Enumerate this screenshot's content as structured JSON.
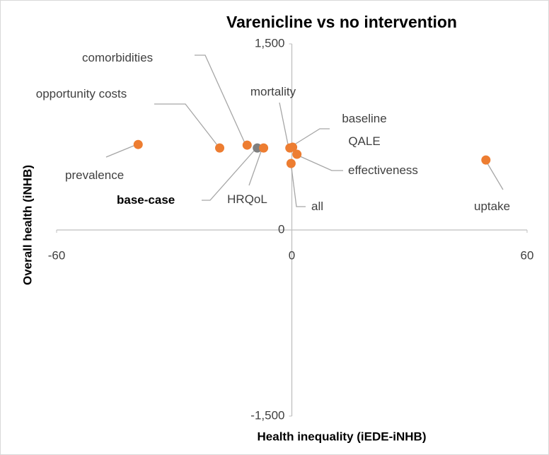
{
  "chart_data": {
    "type": "scatter",
    "title": "Varenicline vs no intervention",
    "xlabel": "Health inequality (iEDE-iNHB)",
    "ylabel": "Overall health (iNHB)",
    "xlim": [
      -60,
      60
    ],
    "ylim": [
      -1500,
      1500
    ],
    "xticks": [
      -60,
      0,
      60
    ],
    "yticks": [
      {
        "value": -1500,
        "label": "-1,500"
      },
      0,
      {
        "value": 1500,
        "label": "1,500"
      }
    ],
    "labels": [
      "prevalence",
      "opportunity costs",
      "comorbidities",
      "base-case",
      "HRQoL",
      "mortality",
      "baseline QALE",
      "effectiveness",
      "all",
      "uptake"
    ],
    "x": [
      -39.2,
      -18.4,
      -11.4,
      -8.8,
      -7.2,
      -0.5,
      0.2,
      1.3,
      -0.2,
      49.5
    ],
    "values": [
      689,
      661,
      684,
      661,
      661,
      661,
      667,
      610,
      536,
      564
    ],
    "colors": [
      "#ed7d31",
      "#ed7d31",
      "#ed7d31",
      "#7f7f7f",
      "#ed7d31",
      "#ed7d31",
      "#ed7d31",
      "#ed7d31",
      "#ed7d31",
      "#ed7d31"
    ]
  }
}
